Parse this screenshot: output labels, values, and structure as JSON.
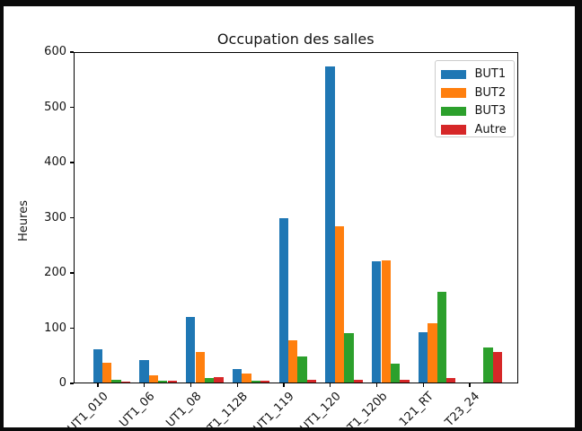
{
  "window": {
    "frame_color": "#0a0a0a",
    "figure_background": "#ffffff"
  },
  "chart_data": {
    "type": "bar",
    "title": "Occupation des salles",
    "xlabel": "",
    "ylabel": "Heures",
    "ylim": [
      0,
      600
    ],
    "yticks": [
      0,
      100,
      200,
      300,
      400,
      500,
      600
    ],
    "grid": false,
    "xtick_rotation": 45,
    "categories": [
      "UT1_010",
      "UT1_06",
      "UT1_08",
      "T1_112B",
      "UT1_119",
      "UT1_120",
      "T1_120b",
      "121_RT",
      "T23_24"
    ],
    "series": [
      {
        "name": "BUT1",
        "color": "#1f77b4",
        "values": [
          60,
          40,
          118,
          25,
          297,
          573,
          220,
          91,
          0
        ]
      },
      {
        "name": "BUT2",
        "color": "#ff7f0e",
        "values": [
          36,
          13,
          56,
          16,
          77,
          283,
          222,
          107,
          0
        ]
      },
      {
        "name": "BUT3",
        "color": "#2ca02c",
        "values": [
          5,
          3,
          8,
          4,
          47,
          90,
          34,
          165,
          63
        ]
      },
      {
        "name": "Autre",
        "color": "#d62728",
        "values": [
          1,
          3,
          10,
          4,
          5,
          5,
          5,
          8,
          55
        ]
      }
    ],
    "legend": {
      "position": "upper right",
      "entries": [
        "BUT1",
        "BUT2",
        "BUT3",
        "Autre"
      ]
    }
  }
}
